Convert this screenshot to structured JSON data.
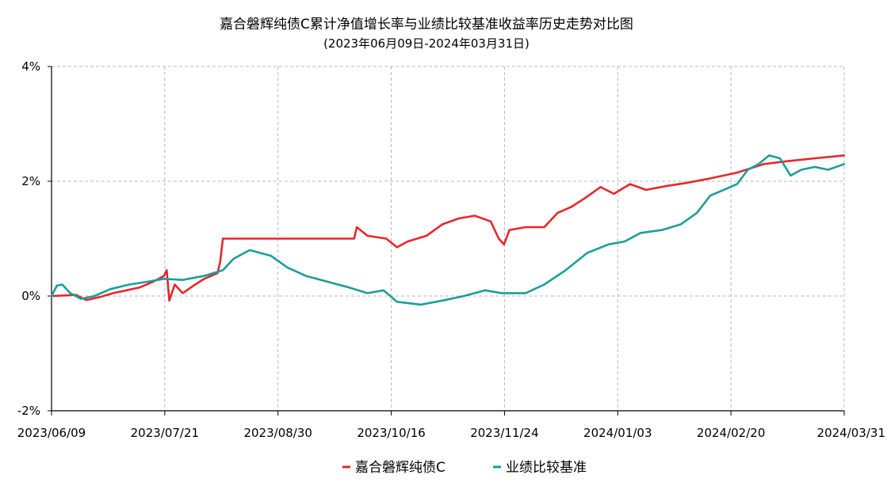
{
  "chart_data": {
    "type": "line",
    "title": "嘉合磐辉纯债C累计净值增长率与业绩比较基准收益率历史走势对比图",
    "subtitle": "(2023年06月09日-2024年03月31日)",
    "xlabel": "",
    "ylabel": "",
    "x_tick_labels": [
      "2023/06/09",
      "2023/07/21",
      "2023/08/30",
      "2023/10/16",
      "2023/11/24",
      "2024/01/03",
      "2024/02/20",
      "2024/03/31"
    ],
    "y_tick_labels": [
      "4%",
      "2%",
      "0%",
      "-2%"
    ],
    "y_ticks": [
      4,
      2,
      0,
      -2
    ],
    "ylim": [
      -2,
      4
    ],
    "x_range": [
      "2023-06-09",
      "2024-03-31"
    ],
    "grid": true,
    "legend_position": "bottom",
    "series": [
      {
        "name": "嘉合磐辉纯债C",
        "color": "#e8262d",
        "points": [
          [
            "2023-06-09",
            0.0
          ],
          [
            "2023-06-14",
            0.01
          ],
          [
            "2023-06-18",
            0.02
          ],
          [
            "2023-06-22",
            -0.07
          ],
          [
            "2023-06-27",
            -0.02
          ],
          [
            "2023-07-02",
            0.05
          ],
          [
            "2023-07-07",
            0.1
          ],
          [
            "2023-07-12",
            0.15
          ],
          [
            "2023-07-17",
            0.25
          ],
          [
            "2023-07-21",
            0.35
          ],
          [
            "2023-07-22",
            0.45
          ],
          [
            "2023-07-23",
            -0.08
          ],
          [
            "2023-07-25",
            0.2
          ],
          [
            "2023-07-28",
            0.05
          ],
          [
            "2023-08-01",
            0.18
          ],
          [
            "2023-08-05",
            0.3
          ],
          [
            "2023-08-10",
            0.4
          ],
          [
            "2023-08-11",
            0.6
          ],
          [
            "2023-08-12",
            1.0
          ],
          [
            "2023-08-20",
            1.0
          ],
          [
            "2023-09-01",
            1.0
          ],
          [
            "2023-09-15",
            1.0
          ],
          [
            "2023-09-30",
            1.0
          ],
          [
            "2023-10-01",
            1.2
          ],
          [
            "2023-10-05",
            1.05
          ],
          [
            "2023-10-12",
            1.0
          ],
          [
            "2023-10-16",
            0.85
          ],
          [
            "2023-10-20",
            0.95
          ],
          [
            "2023-10-27",
            1.05
          ],
          [
            "2023-11-02",
            1.25
          ],
          [
            "2023-11-08",
            1.35
          ],
          [
            "2023-11-14",
            1.4
          ],
          [
            "2023-11-20",
            1.3
          ],
          [
            "2023-11-23",
            1.0
          ],
          [
            "2023-11-25",
            0.9
          ],
          [
            "2023-11-27",
            1.15
          ],
          [
            "2023-12-03",
            1.2
          ],
          [
            "2023-12-10",
            1.2
          ],
          [
            "2023-12-15",
            1.45
          ],
          [
            "2023-12-20",
            1.55
          ],
          [
            "2023-12-25",
            1.7
          ],
          [
            "2023-12-31",
            1.9
          ],
          [
            "2024-01-05",
            1.78
          ],
          [
            "2024-01-11",
            1.95
          ],
          [
            "2024-01-17",
            1.85
          ],
          [
            "2024-01-25",
            1.92
          ],
          [
            "2024-02-01",
            1.97
          ],
          [
            "2024-02-10",
            2.05
          ],
          [
            "2024-02-20",
            2.15
          ],
          [
            "2024-03-01",
            2.3
          ],
          [
            "2024-03-10",
            2.35
          ],
          [
            "2024-03-20",
            2.4
          ],
          [
            "2024-03-31",
            2.45
          ]
        ]
      },
      {
        "name": "业绩比较基准",
        "color": "#1b9e9a",
        "points": [
          [
            "2023-06-09",
            0.0
          ],
          [
            "2023-06-11",
            0.18
          ],
          [
            "2023-06-13",
            0.2
          ],
          [
            "2023-06-16",
            0.05
          ],
          [
            "2023-06-20",
            -0.05
          ],
          [
            "2023-06-25",
            0.0
          ],
          [
            "2023-07-01",
            0.12
          ],
          [
            "2023-07-08",
            0.2
          ],
          [
            "2023-07-15",
            0.25
          ],
          [
            "2023-07-21",
            0.3
          ],
          [
            "2023-07-28",
            0.28
          ],
          [
            "2023-08-05",
            0.35
          ],
          [
            "2023-08-12",
            0.45
          ],
          [
            "2023-08-16",
            0.65
          ],
          [
            "2023-08-22",
            0.8
          ],
          [
            "2023-08-30",
            0.7
          ],
          [
            "2023-09-05",
            0.5
          ],
          [
            "2023-09-12",
            0.35
          ],
          [
            "2023-09-20",
            0.25
          ],
          [
            "2023-09-28",
            0.15
          ],
          [
            "2023-10-05",
            0.05
          ],
          [
            "2023-10-11",
            0.1
          ],
          [
            "2023-10-16",
            -0.1
          ],
          [
            "2023-10-25",
            -0.15
          ],
          [
            "2023-11-02",
            -0.08
          ],
          [
            "2023-11-10",
            0.0
          ],
          [
            "2023-11-18",
            0.1
          ],
          [
            "2023-11-24",
            0.05
          ],
          [
            "2023-12-03",
            0.05
          ],
          [
            "2023-12-10",
            0.2
          ],
          [
            "2023-12-18",
            0.45
          ],
          [
            "2023-12-26",
            0.75
          ],
          [
            "2024-01-03",
            0.9
          ],
          [
            "2024-01-09",
            0.95
          ],
          [
            "2024-01-15",
            1.1
          ],
          [
            "2024-01-23",
            1.15
          ],
          [
            "2024-01-30",
            1.25
          ],
          [
            "2024-02-05",
            1.45
          ],
          [
            "2024-02-10",
            1.75
          ],
          [
            "2024-02-15",
            1.85
          ],
          [
            "2024-02-20",
            1.95
          ],
          [
            "2024-02-24",
            2.2
          ],
          [
            "2024-02-28",
            2.3
          ],
          [
            "2024-03-03",
            2.45
          ],
          [
            "2024-03-07",
            2.4
          ],
          [
            "2024-03-11",
            2.1
          ],
          [
            "2024-03-15",
            2.2
          ],
          [
            "2024-03-20",
            2.25
          ],
          [
            "2024-03-25",
            2.2
          ],
          [
            "2024-03-31",
            2.3
          ]
        ]
      }
    ]
  }
}
